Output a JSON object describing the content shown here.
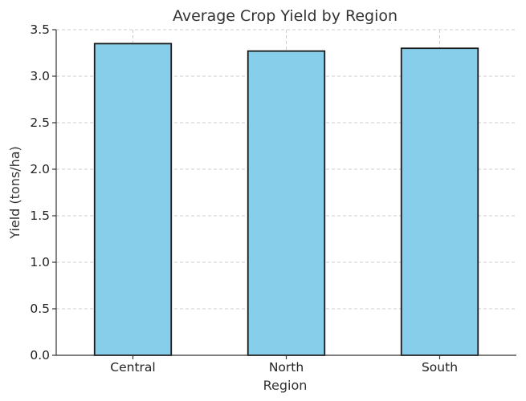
{
  "chart_data": {
    "type": "bar",
    "title": "Average Crop Yield by Region",
    "xlabel": "Region",
    "ylabel": "Yield (tons/ha)",
    "categories": [
      "Central",
      "North",
      "South"
    ],
    "values": [
      3.35,
      3.27,
      3.3
    ],
    "ylim": [
      0,
      3.5
    ],
    "yticks": [
      "0.0",
      "0.5",
      "1.0",
      "1.5",
      "2.0",
      "2.5",
      "3.0",
      "3.5"
    ],
    "grid": true,
    "colors": {
      "bar_fill": "#87ceeb",
      "bar_edge": "#1a1a1a"
    }
  }
}
